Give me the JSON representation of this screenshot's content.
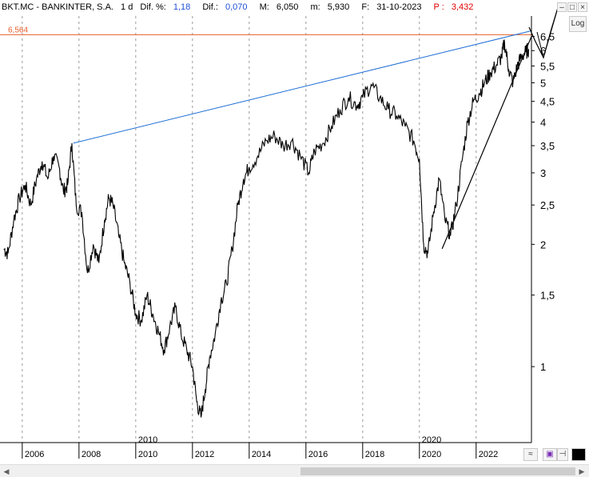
{
  "header": {
    "symbol": "BKT.MC - BANKINTER, S.A.",
    "interval": "1 d",
    "dif_pct_label": "Dif. %:",
    "dif_pct_value": "1,18",
    "dif_label": "Dif.:",
    "dif_value": "0,070",
    "max_label": "M:",
    "max_value": "6,050",
    "min_label": "m:",
    "min_value": "5,930",
    "date_label": "F:",
    "date_value": "31-10-2023",
    "p_label": "P :",
    "p_value": "3,432"
  },
  "controls": {
    "log_button": "Log",
    "minimize_icon": "minimize-icon",
    "maximize_icon": "maximize-icon",
    "close_icon": "close-icon",
    "scroll_left_icon": "scroll-left-icon",
    "scroll_right_icon": "scroll-right-icon"
  },
  "colors": {
    "price": "#000000",
    "horizontal_line": "#e8602c",
    "upper_trendline": "#1f6fd6",
    "support_trendline": "#000000"
  },
  "chart_data": {
    "type": "line",
    "y_scale": "log",
    "ylim": [
      0.65,
      7.3
    ],
    "xlim": [
      2005.3,
      2023.95
    ],
    "y_ticks": [
      1,
      1.5,
      2,
      2.5,
      3,
      3.5,
      4,
      4.5,
      5,
      5.5,
      6,
      6.5
    ],
    "y_tick_labels": [
      "1",
      "1,5",
      "2",
      "2,5",
      "3",
      "3,5",
      "4",
      "4,5",
      "5",
      "5,5",
      "6",
      "6,5"
    ],
    "x_ticks": [
      2006,
      2008,
      2010,
      2012,
      2014,
      2016,
      2018,
      2020,
      2022
    ],
    "x_tick_labels": [
      "2006",
      "2008",
      "2010",
      "2012",
      "2014",
      "2016",
      "2018",
      "2020",
      "2022"
    ],
    "x_sublabels": [
      "2010",
      "2020"
    ],
    "x_sublabel_positions": [
      2010,
      2020
    ],
    "horizontal_level": {
      "value": 6.564,
      "label": "6,564"
    },
    "series": [
      {
        "x": [
          2005.35,
          2005.5,
          2005.7,
          2005.9,
          2006.1,
          2006.3,
          2006.5,
          2006.7,
          2006.9,
          2007.1,
          2007.3,
          2007.45,
          2007.6,
          2007.75,
          2007.9,
          2008.1,
          2008.3,
          2008.5,
          2008.7,
          2008.9,
          2009.05,
          2009.2,
          2009.4,
          2009.6,
          2009.8,
          2010.0,
          2010.2,
          2010.4,
          2010.6,
          2010.8,
          2011.0,
          2011.2,
          2011.4,
          2011.6,
          2011.8,
          2012.0,
          2012.15,
          2012.3,
          2012.45,
          2012.6,
          2012.8,
          2013.0,
          2013.2,
          2013.4,
          2013.6,
          2013.8,
          2014.0,
          2014.3,
          2014.6,
          2014.9,
          2015.2,
          2015.5,
          2015.8,
          2016.1,
          2016.3,
          2016.6,
          2016.9,
          2017.2,
          2017.5,
          2017.8,
          2018.0,
          2018.3,
          2018.6,
          2018.9,
          2019.2,
          2019.5,
          2019.8,
          2020.0,
          2020.15,
          2020.3,
          2020.5,
          2020.7,
          2020.9,
          2021.1,
          2021.3,
          2021.5,
          2021.7,
          2021.9,
          2022.1,
          2022.3,
          2022.5,
          2022.7,
          2022.9,
          2023.0,
          2023.15,
          2023.3,
          2023.45,
          2023.6,
          2023.75,
          2023.85
        ],
        "values": [
          1.95,
          1.9,
          2.3,
          2.6,
          2.8,
          2.5,
          2.9,
          3.2,
          2.9,
          3.3,
          3.1,
          2.7,
          2.8,
          3.55,
          2.5,
          2.4,
          1.7,
          2.0,
          1.8,
          2.3,
          2.6,
          2.5,
          2.1,
          1.8,
          1.6,
          1.35,
          1.3,
          1.5,
          1.35,
          1.22,
          1.1,
          1.25,
          1.4,
          1.2,
          1.1,
          1.0,
          0.82,
          0.75,
          0.88,
          1.05,
          1.2,
          1.45,
          1.6,
          1.95,
          2.5,
          2.9,
          3.1,
          3.3,
          3.6,
          3.7,
          3.5,
          3.6,
          3.3,
          3.0,
          3.4,
          3.55,
          3.9,
          4.3,
          4.6,
          4.4,
          4.6,
          4.95,
          4.6,
          4.3,
          4.15,
          3.9,
          3.6,
          3.25,
          2.0,
          1.9,
          2.4,
          2.9,
          2.3,
          2.1,
          2.5,
          3.2,
          4.0,
          4.5,
          4.7,
          5.0,
          5.3,
          5.5,
          5.8,
          6.3,
          5.4,
          5.0,
          5.5,
          5.8,
          5.95,
          6.05
        ]
      }
    ],
    "trendlines": [
      {
        "name": "",
        "x": [
          2007.8,
          2023.9
        ],
        "y": [
          3.55,
          6.7
        ]
      },
      {
        "name": "",
        "x": [
          2020.8,
          2023.95
        ],
        "y": [
          1.95,
          6.5
        ]
      }
    ]
  }
}
